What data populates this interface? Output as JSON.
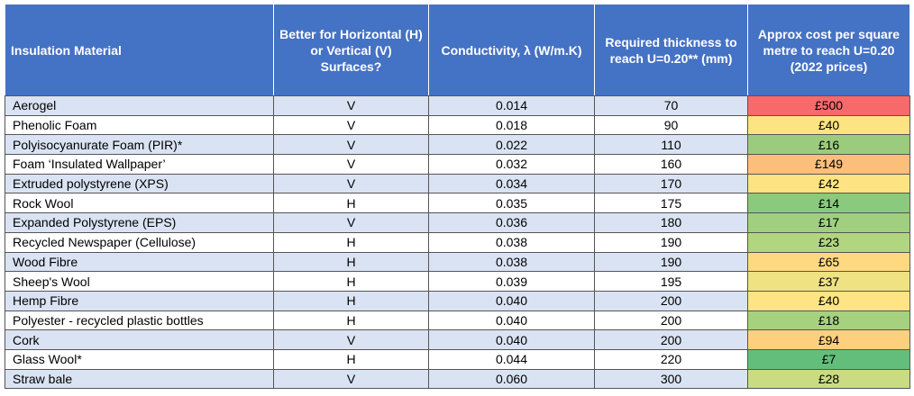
{
  "table": {
    "header": [
      "Insulation Material",
      "Better for Horizontal (H) or Vertical (V) Surfaces?",
      "Conductivity, λ (W/m.K)",
      "Required thickness to reach U=0.20** (mm)",
      "Approx cost per square metre to reach U=0.20 (2022 prices)"
    ],
    "rows": [
      [
        "Aerogel",
        "V",
        "0.014",
        "70",
        "£500"
      ],
      [
        "Phenolic Foam",
        "V",
        "0.018",
        "90",
        "£40"
      ],
      [
        "Polyisocyanurate Foam (PIR)*",
        "V",
        "0.022",
        "110",
        "£16"
      ],
      [
        "Foam ‘Insulated Wallpaper’",
        "V",
        "0.032",
        "160",
        "£149"
      ],
      [
        "Extruded polystyrene (XPS)",
        "V",
        "0.034",
        "170",
        "£42"
      ],
      [
        "Rock Wool",
        "H",
        "0.035",
        "175",
        "£14"
      ],
      [
        "Expanded Polystyrene (EPS)",
        "V",
        "0.036",
        "180",
        "£17"
      ],
      [
        "Recycled Newspaper (Cellulose)",
        "H",
        "0.038",
        "190",
        "£23"
      ],
      [
        "Wood Fibre",
        "H",
        "0.038",
        "190",
        "£65"
      ],
      [
        "Sheep's Wool",
        "H",
        "0.039",
        "195",
        "£37"
      ],
      [
        "Hemp Fibre",
        "H",
        "0.040",
        "200",
        "£40"
      ],
      [
        "Polyester - recycled plastic bottles",
        "H",
        "0.040",
        "200",
        "£18"
      ],
      [
        "Cork",
        "V",
        "0.040",
        "200",
        "£94"
      ],
      [
        "Glass Wool*",
        "H",
        "0.044",
        "220",
        "£7"
      ],
      [
        "Straw bale",
        "V",
        "0.060",
        "300",
        "£28"
      ]
    ],
    "cost_colors": [
      "#f8696b",
      "#fee382",
      "#9bcc7d",
      "#fcbf7b",
      "#fee382",
      "#8ac97e",
      "#a0cf7f",
      "#b2d580",
      "#fed980",
      "#eee283",
      "#fee483",
      "#a6d17f",
      "#fdd07e",
      "#63be7b",
      "#c9dc81"
    ]
  }
}
